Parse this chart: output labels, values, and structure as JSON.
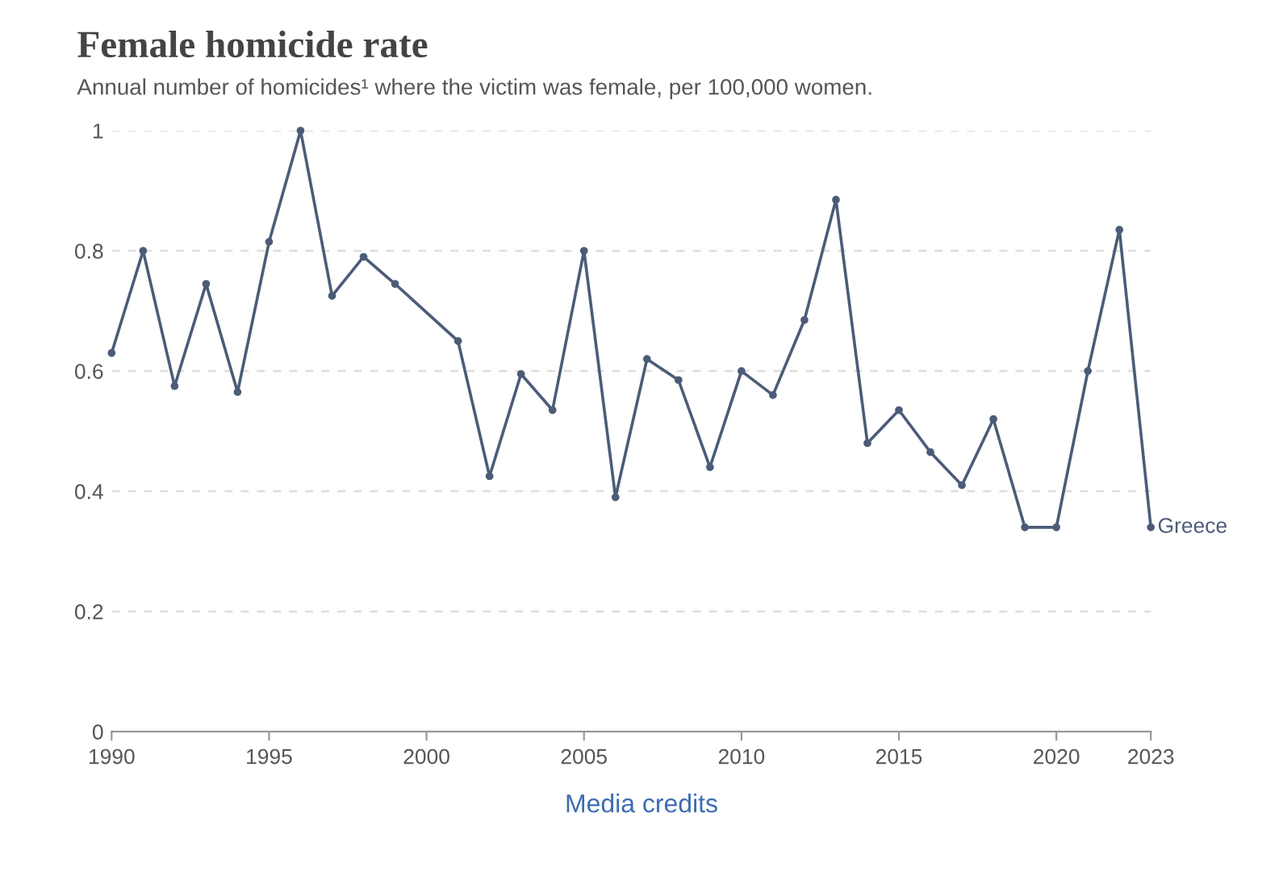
{
  "chart_data": {
    "type": "line",
    "title": "Female homicide rate",
    "subtitle": "Annual number of homicides¹ where the victim was female, per 100,000 women.",
    "annotations": [
      "Media credits"
    ],
    "x": [
      1990,
      1991,
      1992,
      1993,
      1994,
      1995,
      1996,
      1997,
      1998,
      1999,
      2001,
      2002,
      2003,
      2004,
      2005,
      2006,
      2007,
      2008,
      2009,
      2010,
      2011,
      2012,
      2013,
      2014,
      2015,
      2016,
      2017,
      2018,
      2019,
      2020,
      2021,
      2022,
      2023
    ],
    "series": [
      {
        "name": "Greece",
        "color": "#4c5c78",
        "values": [
          0.63,
          0.8,
          0.575,
          0.745,
          0.565,
          0.815,
          1.0,
          0.725,
          0.79,
          0.745,
          0.65,
          0.425,
          0.595,
          0.535,
          0.8,
          0.39,
          0.62,
          0.585,
          0.44,
          0.6,
          0.56,
          0.685,
          0.885,
          0.48,
          0.535,
          0.465,
          0.41,
          0.52,
          0.34,
          0.34,
          0.6,
          0.835,
          0.34
        ]
      }
    ],
    "xlim": [
      1990,
      2023
    ],
    "xticks": [
      1990,
      1995,
      2000,
      2005,
      2010,
      2015,
      2020,
      2023
    ],
    "ylim": [
      0,
      1
    ],
    "yticks": [
      0,
      0.2,
      0.4,
      0.6,
      0.8,
      1
    ],
    "grid": "y",
    "marker": "circle",
    "line_style": "solid"
  }
}
